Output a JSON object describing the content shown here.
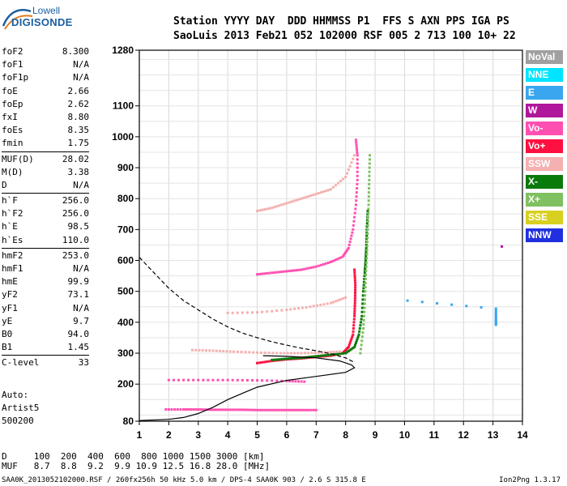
{
  "logo": {
    "line1": "Lowell",
    "line2": "DIGISONDE"
  },
  "header": {
    "row1": "Station YYYY DAY  DDD HHMMSS P1  FFS S AXN PPS IGA PS",
    "row2": "SaoLuis 2013 Feb21 052 102000 RSF 005 2 713 100 10+ 22"
  },
  "params": [
    [
      {
        "n": "foF2",
        "v": "8.300"
      },
      {
        "n": "foF1",
        "v": "N/A"
      },
      {
        "n": "foF1p",
        "v": "N/A"
      },
      {
        "n": "foE",
        "v": "2.66"
      },
      {
        "n": "foEp",
        "v": "2.62"
      },
      {
        "n": "fxI",
        "v": "8.80"
      },
      {
        "n": "foEs",
        "v": "8.35"
      },
      {
        "n": "fmin",
        "v": "1.75"
      }
    ],
    [
      {
        "n": "MUF(D)",
        "v": "28.02"
      },
      {
        "n": "M(D)",
        "v": "3.38"
      },
      {
        "n": "D",
        "v": "N/A"
      }
    ],
    [
      {
        "n": "h`F",
        "v": "256.0"
      },
      {
        "n": "h`F2",
        "v": "256.0"
      },
      {
        "n": "h`E",
        "v": "98.5"
      },
      {
        "n": "h`Es",
        "v": "110.0"
      }
    ],
    [
      {
        "n": "hmF2",
        "v": "253.0"
      },
      {
        "n": "hmF1",
        "v": "N/A"
      },
      {
        "n": "hmE",
        "v": "99.9"
      },
      {
        "n": "yF2",
        "v": "73.1"
      },
      {
        "n": "yF1",
        "v": "N/A"
      },
      {
        "n": "yE",
        "v": "9.7"
      },
      {
        "n": "B0",
        "v": "94.0"
      },
      {
        "n": "B1",
        "v": "1.45"
      }
    ],
    [
      {
        "n": "C-level",
        "v": "33"
      }
    ]
  ],
  "auto": [
    "Auto:",
    "Artist5",
    "500200"
  ],
  "legend": [
    {
      "label": "NoVal",
      "color": "#a0a0a0"
    },
    {
      "label": "NNE",
      "color": "#00e5ff"
    },
    {
      "label": "E",
      "color": "#3aa6f0"
    },
    {
      "label": "W",
      "color": "#b0179b"
    },
    {
      "label": "Vo-",
      "color": "#ff4fb0"
    },
    {
      "label": "Vo+",
      "color": "#ff1040"
    },
    {
      "label": "SSW",
      "color": "#f5b0b0"
    },
    {
      "label": "X-",
      "color": "#0a7a0a"
    },
    {
      "label": "X+",
      "color": "#7fc060"
    },
    {
      "label": "SSE",
      "color": "#d8d020"
    },
    {
      "label": "NNW",
      "color": "#2030e0"
    }
  ],
  "bottom": {
    "row1": "D     100  200  400  600  800 1000 1500 3000 [km]",
    "row2": "MUF   8.7  8.8  9.2  9.9 10.9 12.5 16.8 28.0 [MHz]"
  },
  "footer": "SAA0K_2013052102000.RSF / 260fx256h 50 kHz 5.0 km / DPS-4 SAA0K 903 / 2.6 S 315.8 E",
  "version": "Ion2Png 1.3.17",
  "chart_data": {
    "type": "scatter",
    "xlim": [
      1,
      14
    ],
    "ylim": [
      80,
      1280
    ],
    "x_ticks": [
      1,
      2,
      3,
      4,
      5,
      6,
      7,
      8,
      9,
      10,
      11,
      12,
      13,
      14
    ],
    "y_ticks": [
      80,
      200,
      300,
      400,
      500,
      600,
      700,
      800,
      900,
      1000,
      1100,
      1280
    ],
    "grid": true,
    "traces": [
      {
        "name": "Vo+",
        "color": "#ff1040",
        "points": [
          [
            5.0,
            268
          ],
          [
            5.5,
            275
          ],
          [
            6.0,
            280
          ],
          [
            6.5,
            283
          ],
          [
            7.0,
            288
          ],
          [
            7.5,
            292
          ],
          [
            7.9,
            300
          ],
          [
            8.1,
            320
          ],
          [
            8.25,
            360
          ],
          [
            8.3,
            420
          ],
          [
            8.32,
            470
          ],
          [
            8.33,
            520
          ],
          [
            8.3,
            570
          ]
        ]
      },
      {
        "name": "X-",
        "color": "#0a7a0a",
        "points": [
          [
            5.5,
            278
          ],
          [
            6.0,
            282
          ],
          [
            6.5,
            285
          ],
          [
            7.0,
            290
          ],
          [
            7.5,
            295
          ],
          [
            8.0,
            300
          ],
          [
            8.3,
            320
          ],
          [
            8.45,
            360
          ],
          [
            8.55,
            420
          ],
          [
            8.6,
            500
          ],
          [
            8.65,
            560
          ],
          [
            8.68,
            600
          ],
          [
            8.7,
            640
          ],
          [
            8.72,
            700
          ],
          [
            8.75,
            760
          ]
        ]
      },
      {
        "name": "X+",
        "color": "#7fc060",
        "points": [
          [
            8.5,
            300
          ],
          [
            8.6,
            380
          ],
          [
            8.65,
            460
          ],
          [
            8.68,
            540
          ],
          [
            8.72,
            620
          ],
          [
            8.75,
            700
          ],
          [
            8.78,
            780
          ],
          [
            8.8,
            860
          ],
          [
            8.82,
            940
          ]
        ]
      },
      {
        "name": "Vo-",
        "color": "#ff4fb0",
        "points": [
          [
            5.0,
            555
          ],
          [
            5.5,
            560
          ],
          [
            6.0,
            565
          ],
          [
            6.5,
            570
          ],
          [
            7.0,
            580
          ],
          [
            7.5,
            595
          ],
          [
            7.9,
            612
          ],
          [
            8.1,
            640
          ],
          [
            8.25,
            700
          ],
          [
            8.35,
            780
          ],
          [
            8.4,
            860
          ],
          [
            8.4,
            940
          ],
          [
            8.35,
            990
          ]
        ]
      },
      {
        "name": "Vo-",
        "color": "#ff4fb0",
        "points": [
          [
            2.0,
            213
          ],
          [
            3.0,
            213
          ],
          [
            4.0,
            213
          ],
          [
            5.0,
            212
          ],
          [
            6.0,
            210
          ],
          [
            6.6,
            208
          ]
        ]
      },
      {
        "name": "Vo-",
        "color": "#ff4fb0",
        "points": [
          [
            1.9,
            118
          ],
          [
            2.5,
            118
          ],
          [
            3.0,
            118
          ],
          [
            3.5,
            117
          ],
          [
            4.0,
            117
          ],
          [
            4.5,
            117
          ],
          [
            5.0,
            116
          ],
          [
            5.5,
            116
          ],
          [
            6.0,
            116
          ],
          [
            6.5,
            116
          ],
          [
            7.0,
            116
          ]
        ]
      },
      {
        "name": "SSW",
        "color": "#f5b0b0",
        "points": [
          [
            2.8,
            310
          ],
          [
            3.5,
            308
          ],
          [
            4.2,
            305
          ],
          [
            5.0,
            302
          ],
          [
            5.8,
            300
          ],
          [
            6.5,
            300
          ],
          [
            7.2,
            302
          ],
          [
            7.8,
            305
          ]
        ]
      },
      {
        "name": "SSW",
        "color": "#f5b0b0",
        "points": [
          [
            4.0,
            430
          ],
          [
            5.0,
            432
          ],
          [
            6.0,
            440
          ],
          [
            6.8,
            450
          ],
          [
            7.5,
            462
          ],
          [
            8.0,
            480
          ]
        ]
      },
      {
        "name": "SSW",
        "color": "#f5b0b0",
        "points": [
          [
            5.0,
            760
          ],
          [
            5.5,
            770
          ],
          [
            6.0,
            785
          ],
          [
            6.5,
            800
          ],
          [
            7.0,
            815
          ],
          [
            7.5,
            830
          ],
          [
            8.0,
            870
          ],
          [
            8.3,
            940
          ]
        ]
      },
      {
        "name": "E",
        "color": "#3aa6f0",
        "points": [
          [
            10.1,
            470
          ],
          [
            13.1,
            444
          ],
          [
            13.1,
            412
          ],
          [
            13.1,
            392
          ]
        ]
      },
      {
        "name": "W",
        "color": "#b0179b",
        "points": [
          [
            13.3,
            645
          ]
        ]
      }
    ],
    "profile_solid": {
      "points": [
        [
          1.0,
          82
        ],
        [
          2.0,
          86
        ],
        [
          2.5,
          92
        ],
        [
          3.0,
          105
        ],
        [
          3.5,
          125
        ],
        [
          4.0,
          150
        ],
        [
          4.5,
          170
        ],
        [
          5.0,
          190
        ],
        [
          6.0,
          212
        ],
        [
          7.0,
          225
        ],
        [
          8.0,
          238
        ],
        [
          8.3,
          253
        ],
        [
          8.2,
          262
        ],
        [
          7.8,
          275
        ],
        [
          7.0,
          285
        ],
        [
          6.0,
          290
        ],
        [
          5.2,
          292
        ]
      ]
    },
    "profile_dashed": {
      "points": [
        [
          1.0,
          610
        ],
        [
          1.5,
          560
        ],
        [
          2.0,
          510
        ],
        [
          2.5,
          470
        ],
        [
          3.0,
          440
        ],
        [
          3.5,
          410
        ],
        [
          4.0,
          385
        ],
        [
          4.5,
          365
        ],
        [
          5.0,
          350
        ],
        [
          5.5,
          337
        ],
        [
          6.0,
          326
        ],
        [
          6.5,
          316
        ],
        [
          7.0,
          308
        ],
        [
          7.5,
          298
        ],
        [
          8.0,
          285
        ],
        [
          8.3,
          270
        ]
      ]
    }
  }
}
